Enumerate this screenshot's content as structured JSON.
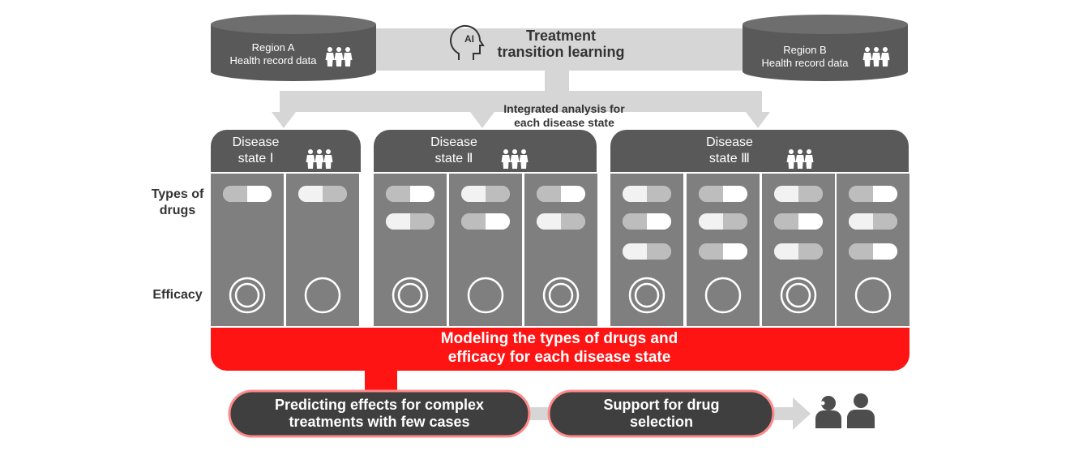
{
  "region_a": {
    "name": "Region A",
    "sub": "Health record data"
  },
  "region_b": {
    "name": "Region B",
    "sub": "Health record data"
  },
  "center_title": {
    "line1": "Treatment",
    "line2": "transition learning",
    "ai_label": "AI"
  },
  "integrated": {
    "line1": "Integrated analysis for",
    "line2": "each disease state"
  },
  "states": [
    {
      "line1": "Disease",
      "line2": "state Ⅰ"
    },
    {
      "line1": "Disease",
      "line2": "state Ⅱ"
    },
    {
      "line1": "Disease",
      "line2": "state Ⅲ"
    }
  ],
  "row_labels": {
    "types_line1": "Types of",
    "types_line2": "drugs",
    "efficacy": "Efficacy"
  },
  "modeling": {
    "line1": "Modeling the types of drugs and",
    "line2": "efficacy for each disease state"
  },
  "predicting": {
    "line1": "Predicting effects for complex",
    "line2": "treatments with few cases"
  },
  "support": {
    "line1": "Support for drug",
    "line2": "selection"
  },
  "colors": {
    "dark": "#595959",
    "column": "#7f7f7f",
    "light_arrow": "#d9d9d9",
    "red": "#ff1414",
    "pill_dark": "#3f3f3f"
  }
}
